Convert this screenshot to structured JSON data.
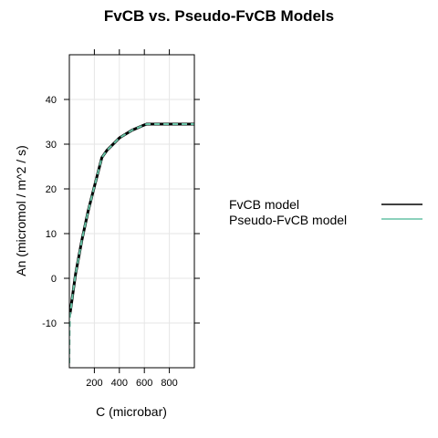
{
  "chart_data": {
    "type": "line",
    "title": "FvCB vs. Pseudo-FvCB Models",
    "xlabel": "C (microbar)",
    "ylabel": "An (micromol / m^2 / s)",
    "xlim": [
      0,
      1000
    ],
    "ylim": [
      -20,
      50
    ],
    "xticks": [
      200,
      400,
      600,
      800
    ],
    "yticks": [
      -10,
      0,
      10,
      20,
      30,
      40
    ],
    "grid": true,
    "legend_position": "right",
    "series": [
      {
        "name": "FvCB model",
        "color": "#000000",
        "style": "solid",
        "x": [
          5,
          20,
          50,
          100,
          150,
          200,
          260,
          300,
          400,
          500,
          600,
          620,
          700,
          800,
          900,
          1000
        ],
        "y": [
          -8.0,
          -5.0,
          1.0,
          8.5,
          15.0,
          20.5,
          27.0,
          28.6,
          31.4,
          33.1,
          34.3,
          34.5,
          34.5,
          34.5,
          34.5,
          34.5
        ]
      },
      {
        "name": "Pseudo-FvCB model",
        "color": "#66c2a5",
        "style": "dashed",
        "x": [
          0,
          2,
          5,
          20,
          50,
          100,
          150,
          200,
          260,
          300,
          400,
          500,
          600,
          620,
          700,
          800,
          900,
          1000
        ],
        "y": [
          -19.0,
          -12.0,
          -8.5,
          -5.0,
          1.0,
          8.5,
          15.0,
          20.5,
          27.0,
          28.6,
          31.4,
          33.1,
          34.3,
          34.5,
          34.5,
          34.5,
          34.5,
          34.5
        ]
      }
    ]
  }
}
